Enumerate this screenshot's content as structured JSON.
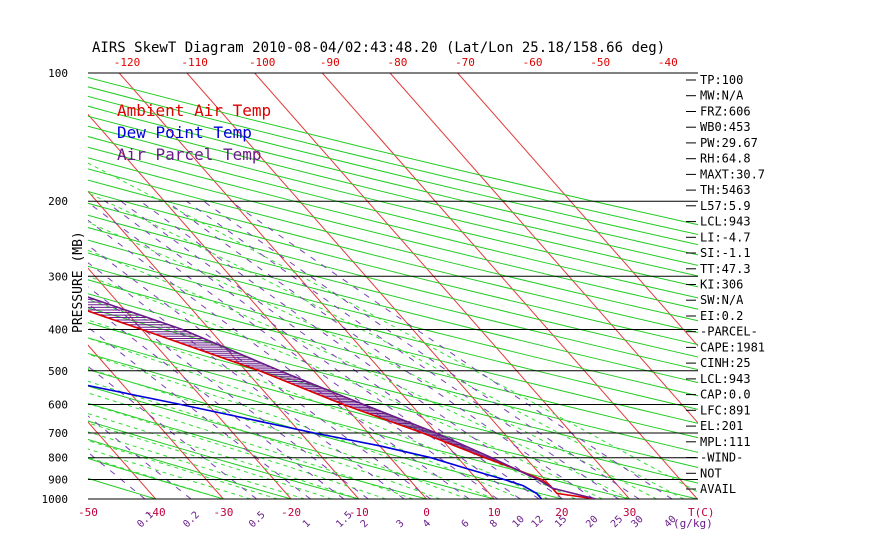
{
  "chart_data": {
    "type": "line",
    "title": "AIRS SkewT Diagram 2010-08-04/02:43:48.20 (Lat/Lon 25.18/158.66 deg)",
    "ylabel": "PRESSURE (MB)",
    "xlabel_bottom": "T(C)",
    "mixing_ratio_unit": "(g/kg)",
    "ylim": [
      1000,
      100
    ],
    "pressure_ticks": [
      100,
      200,
      300,
      400,
      500,
      600,
      700,
      800,
      900,
      1000
    ],
    "top_temp_ticks": [
      -120,
      -110,
      -100,
      -90,
      -80,
      -70,
      -60,
      -50,
      -40
    ],
    "bottom_temp_ticks": [
      -50,
      -40,
      -30,
      -20,
      -10,
      0,
      10,
      20,
      30
    ],
    "mixing_ratio_labels": [
      "0.1",
      "0.2",
      "0.5",
      "1",
      "1.5",
      "2",
      "3",
      "4",
      "6",
      "8",
      "10",
      "12",
      "15",
      "20",
      "25",
      "30",
      "40"
    ],
    "legend": [
      {
        "label": "Ambient Air Temp",
        "color": "#dd0000"
      },
      {
        "label": "Dew Point Temp",
        "color": "#0000dd"
      },
      {
        "label": "Air Parcel Temp",
        "color": "#6a1d8a"
      }
    ],
    "series": [
      {
        "name": "Ambient Air Temp",
        "points": [
          [
            1000,
            25
          ],
          [
            970,
            20
          ],
          [
            930,
            20
          ],
          [
            900,
            19.5
          ],
          [
            850,
            17
          ],
          [
            800,
            14
          ],
          [
            700,
            8
          ],
          [
            600,
            0
          ],
          [
            500,
            -8
          ],
          [
            400,
            -20
          ],
          [
            300,
            -36
          ],
          [
            250,
            -44
          ],
          [
            220,
            -44
          ],
          [
            200,
            -42
          ],
          [
            170,
            -45
          ],
          [
            150,
            -48
          ],
          [
            130,
            -58
          ],
          [
            100,
            -72
          ]
        ]
      },
      {
        "name": "Dew Point Temp",
        "points": [
          [
            1000,
            17
          ],
          [
            970,
            17
          ],
          [
            930,
            16
          ],
          [
            900,
            14
          ],
          [
            850,
            10
          ],
          [
            800,
            6
          ],
          [
            750,
            0
          ],
          [
            700,
            -8
          ],
          [
            600,
            -24
          ],
          [
            500,
            -44
          ],
          [
            400,
            -62
          ],
          [
            350,
            -68
          ],
          [
            300,
            -76
          ],
          [
            250,
            -80
          ],
          [
            200,
            -84
          ],
          [
            170,
            -88
          ],
          [
            150,
            -92
          ],
          [
            100,
            -100
          ]
        ]
      },
      {
        "name": "Air Parcel Temp",
        "points": [
          [
            1000,
            25
          ],
          [
            943,
            20
          ],
          [
            900,
            19
          ],
          [
            850,
            17
          ],
          [
            800,
            15
          ],
          [
            700,
            10
          ],
          [
            600,
            3
          ],
          [
            500,
            -5
          ],
          [
            400,
            -14
          ],
          [
            300,
            -30
          ],
          [
            250,
            -40
          ],
          [
            220,
            -48
          ],
          [
            200,
            -53
          ],
          [
            150,
            -72
          ],
          [
            100,
            -100
          ]
        ]
      }
    ],
    "indices": [
      "TP:100",
      "MW:N/A",
      "FRZ:606",
      "WB0:453",
      "PW:29.67",
      "RH:64.8",
      "MAXT:30.7",
      "TH:5463",
      "L57:5.9",
      "LCL:943",
      "LI:-4.7",
      "SI:-1.1",
      "TT:47.3",
      "KI:306",
      "SW:N/A",
      "EI:0.2",
      "-PARCEL-",
      "CAPE:1981",
      "CINH:25",
      "LCL:943",
      "CAP:0.0",
      "LFC:891",
      "EL:201",
      "MPL:111",
      "-WIND-",
      "NOT",
      "AVAIL"
    ]
  }
}
